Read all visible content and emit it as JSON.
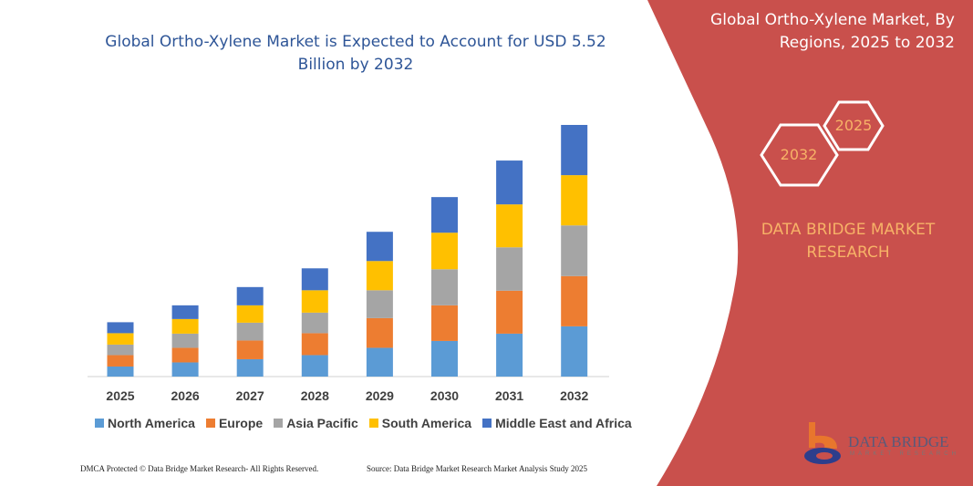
{
  "header": {
    "title": "Global Ortho-Xylene Market is Expected to Account for USD 5.52 Billion by 2032"
  },
  "side_panel": {
    "title": "Global Ortho-Xylene Market, By Regions, 2025 to 2032",
    "hex_start": "2025",
    "hex_end": "2032",
    "brand": "DATA BRIDGE MARKET RESEARCH",
    "logo_text": "DATA BRIDGE",
    "logo_subtext": "MARKET RESEARCH",
    "panel_color": "#C9504C"
  },
  "footer": {
    "copyright": "DMCA Protected © Data Bridge Market Research- All Rights Reserved.",
    "source": "Source: Data Bridge Market Research Market Analysis Study 2025"
  },
  "chart_data": {
    "type": "bar",
    "stacked": true,
    "title": "Global Ortho-Xylene Market is Expected to Account for USD 5.52 Billion by 2032",
    "xlabel": "",
    "ylabel": "",
    "grid": false,
    "y_axis_shown": false,
    "legend_position": "bottom",
    "categories": [
      "2025",
      "2026",
      "2027",
      "2028",
      "2029",
      "2030",
      "2031",
      "2032"
    ],
    "series": [
      {
        "name": "North America",
        "color": "#5B9BD5",
        "values": [
          0.22,
          0.31,
          0.38,
          0.47,
          0.63,
          0.78,
          0.94,
          1.1
        ]
      },
      {
        "name": "Europe",
        "color": "#ED7D31",
        "values": [
          0.25,
          0.32,
          0.41,
          0.48,
          0.65,
          0.78,
          0.94,
          1.1
        ]
      },
      {
        "name": "Asia Pacific",
        "color": "#A5A5A5",
        "values": [
          0.23,
          0.31,
          0.39,
          0.45,
          0.61,
          0.79,
          0.95,
          1.11
        ]
      },
      {
        "name": "South America",
        "color": "#FFC000",
        "values": [
          0.25,
          0.32,
          0.38,
          0.49,
          0.64,
          0.8,
          0.94,
          1.1
        ]
      },
      {
        "name": "Middle East and Africa",
        "color": "#4472C4",
        "values": [
          0.24,
          0.3,
          0.4,
          0.48,
          0.64,
          0.78,
          0.96,
          1.1
        ]
      }
    ]
  }
}
